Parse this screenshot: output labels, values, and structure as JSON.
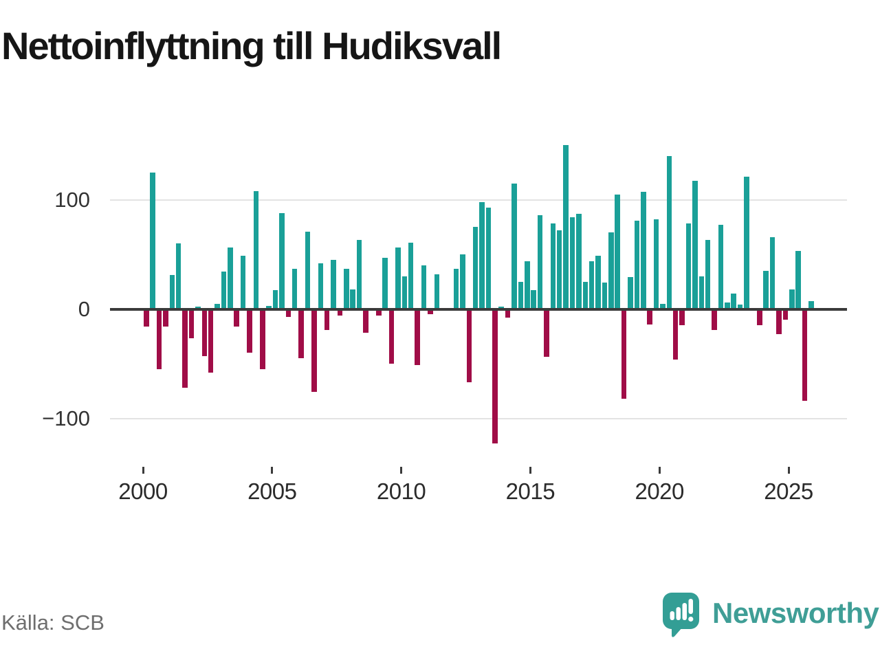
{
  "header": {
    "title": "Nettoinflyttning till Hudiksvall"
  },
  "footer": {
    "source": "Källa: SCB",
    "brand": "Newsworthy"
  },
  "colors": {
    "positive_bar": "#1aa098",
    "negative_bar": "#a00d47",
    "zero_axis": "#3b3b3b",
    "gridline": "#e3e3e3",
    "brand_teal": "#3f9e96"
  },
  "chart_data": {
    "type": "bar",
    "title": "Nettoinflyttning till Hudiksvall",
    "frequency": "quarterly",
    "first_period": "2000-Q1",
    "last_period": "2025-Q4",
    "grid": "horizontal",
    "legend_position": "none",
    "ylim": [
      -135,
      160
    ],
    "y_ticks": [
      100,
      0,
      -100
    ],
    "y_tick_labels": [
      "100",
      "0",
      "−100"
    ],
    "x_tick_labels": [
      "2000",
      "2005",
      "2010",
      "2015",
      "2020",
      "2025"
    ],
    "values": [
      -16,
      125,
      -55,
      -16,
      31,
      60,
      -72,
      -27,
      2,
      -43,
      -58,
      5,
      34,
      56,
      -16,
      49,
      -40,
      108,
      -55,
      3,
      17,
      88,
      -7,
      37,
      -45,
      71,
      -76,
      42,
      -19,
      45,
      -6,
      37,
      18,
      63,
      -22,
      0,
      -6,
      47,
      -50,
      56,
      30,
      61,
      -51,
      40,
      -5,
      32,
      0,
      0,
      37,
      50,
      -67,
      75,
      98,
      93,
      -123,
      2,
      -8,
      115,
      25,
      44,
      17,
      86,
      -44,
      78,
      72,
      150,
      84,
      87,
      25,
      44,
      49,
      24,
      70,
      105,
      -82,
      29,
      81,
      107,
      -14,
      82,
      5,
      140,
      -46,
      -15,
      78,
      117,
      30,
      63,
      -19,
      77,
      6,
      14,
      4,
      121,
      0,
      -15,
      35,
      66,
      -23,
      -10,
      18,
      53,
      -84,
      7
    ]
  }
}
